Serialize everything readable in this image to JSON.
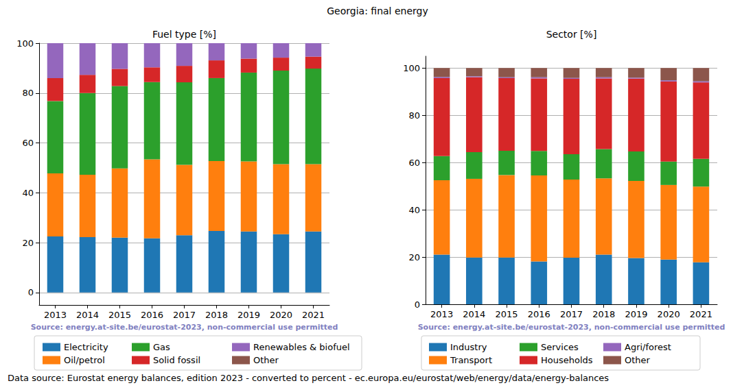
{
  "title": "Georgia: final energy",
  "note": "Data source: Eurostat energy balances, edition 2023 - converted to percent - ec.europa.eu/eurostat/web/energy/data/energy-balances",
  "chart_data": [
    {
      "type": "bar",
      "title": "Fuel type [%]",
      "annotation": "Source: energy.at-site.be/eurostat-2023, non-commercial use permitted",
      "categories": [
        "2013",
        "2014",
        "2015",
        "2016",
        "2017",
        "2018",
        "2019",
        "2020",
        "2021"
      ],
      "series": [
        {
          "name": "Electricity",
          "color": "#1f77b4",
          "values": [
            22.5,
            22.2,
            22.0,
            21.7,
            23.0,
            24.7,
            24.5,
            23.4,
            24.5
          ]
        },
        {
          "name": "Oil/petrol",
          "color": "#ff7f0e",
          "values": [
            25.3,
            25.0,
            27.8,
            31.7,
            28.2,
            28.0,
            28.1,
            28.1,
            27.0
          ]
        },
        {
          "name": "Gas",
          "color": "#2ca02c",
          "values": [
            29.0,
            32.8,
            33.0,
            31.0,
            33.1,
            33.3,
            35.6,
            37.5,
            38.3
          ]
        },
        {
          "name": "Solid fossil",
          "color": "#d62728",
          "values": [
            9.2,
            7.3,
            6.9,
            5.9,
            6.6,
            7.1,
            5.6,
            5.2,
            4.8
          ]
        },
        {
          "name": "Renewables & biofuel",
          "color": "#9467bd",
          "values": [
            14.0,
            12.7,
            10.3,
            9.7,
            9.1,
            6.9,
            6.2,
            5.8,
            5.4
          ]
        },
        {
          "name": "Other",
          "color": "#8c564b",
          "values": [
            0,
            0,
            0,
            0,
            0,
            0,
            0,
            0,
            0
          ]
        }
      ],
      "ylim": [
        -5,
        100
      ],
      "yticks": [
        0,
        20,
        40,
        60,
        80,
        100
      ],
      "grid": true,
      "stacked": true,
      "legend": "bottom"
    },
    {
      "type": "bar",
      "title": "Sector [%]",
      "annotation": "Source: energy.at-site.be/eurostat-2023, non-commercial use permitted",
      "categories": [
        "2013",
        "2014",
        "2015",
        "2016",
        "2017",
        "2018",
        "2019",
        "2020",
        "2021"
      ],
      "series": [
        {
          "name": "Industry",
          "color": "#1f77b4",
          "values": [
            21.0,
            19.8,
            19.8,
            18.1,
            19.7,
            21.0,
            19.6,
            18.9,
            17.8
          ]
        },
        {
          "name": "Transport",
          "color": "#ff7f0e",
          "values": [
            31.5,
            33.3,
            34.9,
            36.4,
            33.1,
            32.3,
            32.6,
            31.6,
            32.0
          ]
        },
        {
          "name": "Services",
          "color": "#2ca02c",
          "values": [
            10.2,
            11.3,
            10.3,
            10.4,
            10.7,
            12.4,
            12.5,
            9.9,
            11.8
          ]
        },
        {
          "name": "Households",
          "color": "#d62728",
          "values": [
            33.0,
            31.7,
            30.7,
            30.7,
            31.9,
            29.9,
            30.8,
            33.9,
            32.3
          ]
        },
        {
          "name": "Agri/forest",
          "color": "#9467bd",
          "values": [
            0.5,
            0.4,
            0.4,
            0.5,
            0.4,
            0.5,
            0.4,
            0.5,
            0.5
          ]
        },
        {
          "name": "Other",
          "color": "#8c564b",
          "values": [
            3.8,
            3.5,
            3.9,
            3.9,
            4.2,
            3.9,
            4.1,
            5.2,
            5.6
          ]
        }
      ],
      "ylim": [
        0,
        105
      ],
      "yticks": [
        0,
        20,
        40,
        60,
        80,
        100
      ],
      "grid": true,
      "stacked": true,
      "legend": "bottom"
    }
  ]
}
